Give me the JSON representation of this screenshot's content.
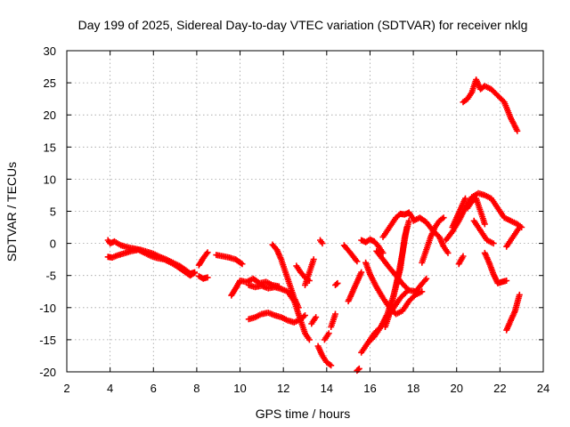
{
  "chart_data": {
    "type": "scatter",
    "title": "Day 199 of 2025, Sidereal Day-to-day VTEC variation (SDTVAR) for receiver nklg",
    "xlabel": "GPS time / hours",
    "ylabel": "SDTVAR / TECUs",
    "xlim": [
      2,
      24
    ],
    "ylim": [
      -20,
      30
    ],
    "x_ticks": [
      2,
      4,
      6,
      8,
      10,
      12,
      14,
      16,
      18,
      20,
      22,
      24
    ],
    "y_ticks": [
      -20,
      -15,
      -10,
      -5,
      0,
      5,
      10,
      15,
      20,
      25,
      30
    ],
    "grid": true,
    "marker": "+",
    "color": "#ff0000",
    "series": [
      {
        "name": "track-1",
        "x": [
          3.9,
          4.0,
          4.2,
          4.5,
          4.8,
          5.1,
          5.4,
          5.7,
          6.0,
          6.3,
          6.6,
          6.9,
          7.2,
          7.5,
          7.7,
          7.9
        ],
        "y": [
          0.5,
          0.0,
          0.3,
          -0.3,
          -0.6,
          -0.8,
          -1.0,
          -1.3,
          -1.6,
          -2.1,
          -2.5,
          -3.0,
          -3.5,
          -4.2,
          -4.7,
          -4.5
        ]
      },
      {
        "name": "track-2",
        "x": [
          3.9,
          4.1,
          4.4,
          4.7,
          5.0,
          5.3,
          5.6,
          5.9,
          6.2,
          6.5,
          6.8,
          7.1,
          7.4,
          7.7,
          7.9
        ],
        "y": [
          -2.1,
          -2.2,
          -1.8,
          -1.5,
          -1.2,
          -1.0,
          -1.5,
          -2.0,
          -2.3,
          -2.5,
          -3.0,
          -3.6,
          -4.3,
          -5.0,
          -4.6
        ]
      },
      {
        "name": "track-3",
        "x": [
          8.1,
          8.3,
          8.5
        ],
        "y": [
          -3.4,
          -2.3,
          -1.4
        ]
      },
      {
        "name": "track-4",
        "x": [
          8.1,
          8.3,
          8.5
        ],
        "y": [
          -5.1,
          -5.5,
          -5.3
        ]
      },
      {
        "name": "track-5",
        "x": [
          8.9,
          9.2,
          9.5,
          9.8,
          10.1
        ],
        "y": [
          -1.8,
          -2.0,
          -2.2,
          -2.5,
          -3.2
        ]
      },
      {
        "name": "track-6",
        "x": [
          9.6,
          9.8,
          10.0,
          10.3,
          10.6,
          10.9,
          11.2,
          11.5,
          11.8
        ],
        "y": [
          -8.1,
          -7.0,
          -5.8,
          -6.0,
          -5.5,
          -6.2,
          -6.0,
          -6.5,
          -6.7
        ]
      },
      {
        "name": "track-7",
        "x": [
          10.4,
          10.7,
          11.0,
          11.3,
          11.6,
          11.9,
          12.2,
          12.5,
          12.8,
          13.0,
          13.2
        ],
        "y": [
          -6.5,
          -6.8,
          -6.6,
          -7.0,
          -6.8,
          -7.1,
          -7.5,
          -9.0,
          -12.0,
          -14.0,
          -15.0
        ]
      },
      {
        "name": "track-8",
        "x": [
          10.4,
          10.7,
          11.0,
          11.3,
          11.6,
          11.9,
          12.2,
          12.5,
          12.8,
          13.0
        ],
        "y": [
          -11.8,
          -11.5,
          -11.0,
          -10.8,
          -11.2,
          -11.5,
          -12.0,
          -12.3,
          -11.8,
          -11.2
        ]
      },
      {
        "name": "track-9",
        "x": [
          11.5,
          11.7,
          11.9,
          12.1,
          12.3,
          12.5,
          12.7
        ],
        "y": [
          -0.2,
          -1.0,
          -2.5,
          -4.5,
          -6.5,
          -8.5,
          -10.0
        ]
      },
      {
        "name": "track-10",
        "x": [
          12.6,
          12.8,
          13.0,
          13.2
        ],
        "y": [
          -3.5,
          -4.5,
          -5.3,
          -5.8
        ]
      },
      {
        "name": "track-11",
        "x": [
          13.0,
          13.2,
          13.4
        ],
        "y": [
          -6.5,
          -4.5,
          -2.5
        ]
      },
      {
        "name": "track-12",
        "x": [
          13.3,
          13.5
        ],
        "y": [
          -12.5,
          -11.5
        ]
      },
      {
        "name": "track-13",
        "x": [
          13.6,
          13.8,
          14.0,
          14.2
        ],
        "y": [
          -16.0,
          -17.5,
          -18.5,
          -19.0
        ]
      },
      {
        "name": "track-14",
        "x": [
          13.7,
          13.8
        ],
        "y": [
          0.5,
          0.0
        ]
      },
      {
        "name": "track-15",
        "x": [
          13.9,
          14.1
        ],
        "y": [
          -15.0,
          -14.0
        ]
      },
      {
        "name": "track-16",
        "x": [
          14.2,
          14.4
        ],
        "y": [
          -13.0,
          -11.0
        ]
      },
      {
        "name": "track-17",
        "x": [
          14.4,
          14.5
        ],
        "y": [
          -6.5,
          -6.2
        ]
      },
      {
        "name": "track-18",
        "x": [
          14.8,
          15.1,
          15.4
        ],
        "y": [
          -0.3,
          -1.5,
          -2.8
        ]
      },
      {
        "name": "track-19",
        "x": [
          15.4,
          15.5
        ],
        "y": [
          -19.8,
          -19.5
        ]
      },
      {
        "name": "track-20",
        "x": [
          15.0,
          15.2,
          15.4,
          15.6
        ],
        "y": [
          -9.0,
          -7.5,
          -6.0,
          -4.5
        ]
      },
      {
        "name": "track-21",
        "x": [
          15.6,
          15.9,
          16.2,
          16.5,
          16.8,
          17.1,
          17.4,
          17.7
        ],
        "y": [
          -17.0,
          -15.5,
          -14.0,
          -13.0,
          -11.5,
          -10.0,
          -8.5,
          -7.5
        ]
      },
      {
        "name": "track-22",
        "x": [
          15.9,
          16.2,
          16.5,
          16.8,
          17.1,
          17.4,
          17.6,
          17.8
        ],
        "y": [
          -15.5,
          -14.5,
          -13.0,
          -11.0,
          -8.0,
          -4.0,
          1.0,
          3.5
        ]
      },
      {
        "name": "track-23",
        "x": [
          15.8,
          16.0,
          16.3,
          16.6,
          16.9,
          17.2,
          17.5,
          17.8,
          18.1,
          18.4
        ],
        "y": [
          -3.0,
          -4.8,
          -6.8,
          -8.5,
          -10.0,
          -11.0,
          -10.5,
          -9.0,
          -8.0,
          -7.5
        ]
      },
      {
        "name": "track-24",
        "x": [
          15.6,
          15.8,
          16.0,
          16.2,
          16.4,
          16.6
        ],
        "y": [
          0.5,
          0.2,
          0.6,
          0.3,
          -0.5,
          -1.5
        ]
      },
      {
        "name": "track-25",
        "x": [
          16.3,
          16.6,
          16.9,
          17.2,
          17.5,
          17.8,
          18.1,
          18.4,
          18.6
        ],
        "y": [
          -1.2,
          -2.5,
          -3.8,
          -5.0,
          -6.3,
          -7.3,
          -7.5,
          -6.3,
          -5.5
        ]
      },
      {
        "name": "track-26",
        "x": [
          16.6,
          16.8,
          17.0,
          17.2,
          17.4,
          17.6,
          17.8,
          18.0
        ],
        "y": [
          1.0,
          2.0,
          3.0,
          4.0,
          4.6,
          4.5,
          4.8,
          3.8
        ]
      },
      {
        "name": "track-27",
        "x": [
          16.7,
          16.9,
          17.1,
          17.3,
          17.5,
          17.7
        ],
        "y": [
          -13.0,
          -11.0,
          -8.0,
          -5.0,
          -1.5,
          2.5
        ]
      },
      {
        "name": "track-28",
        "x": [
          18.0,
          18.3,
          18.6,
          18.9,
          19.2,
          19.4,
          19.6
        ],
        "y": [
          3.5,
          4.0,
          3.3,
          2.0,
          1.0,
          -0.5,
          -1.5
        ]
      },
      {
        "name": "track-29",
        "x": [
          18.4,
          18.6,
          18.8,
          19.0,
          19.2,
          19.4
        ],
        "y": [
          -3.0,
          -1.0,
          1.0,
          2.5,
          3.5,
          4.0
        ]
      },
      {
        "name": "track-30",
        "x": [
          19.5,
          19.8,
          20.1,
          20.4,
          20.7,
          21.0,
          21.3,
          21.6,
          21.9,
          22.2,
          22.5,
          22.8,
          23.0
        ],
        "y": [
          0.5,
          1.8,
          3.5,
          5.5,
          7.2,
          7.8,
          7.5,
          7.0,
          5.5,
          4.0,
          3.5,
          3.0,
          2.5
        ]
      },
      {
        "name": "track-31",
        "x": [
          19.8,
          20.0,
          20.2,
          20.4
        ],
        "y": [
          2.5,
          4.0,
          5.5,
          7.0
        ]
      },
      {
        "name": "track-32",
        "x": [
          20.5,
          20.7,
          20.9,
          21.1,
          21.3
        ],
        "y": [
          5.5,
          6.5,
          7.0,
          5.0,
          3.0
        ]
      },
      {
        "name": "track-33",
        "x": [
          20.1,
          20.3
        ],
        "y": [
          -3.2,
          -2.0
        ]
      },
      {
        "name": "track-34",
        "x": [
          20.8,
          21.1,
          21.4,
          21.7
        ],
        "y": [
          3.5,
          2.0,
          0.5,
          0.0
        ]
      },
      {
        "name": "track-35",
        "x": [
          21.3,
          21.5,
          21.7,
          21.9,
          22.1,
          22.3
        ],
        "y": [
          -1.5,
          -3.0,
          -4.8,
          -6.2,
          -6.0,
          -5.8
        ]
      },
      {
        "name": "track-36",
        "x": [
          22.3,
          22.5,
          22.7,
          22.9
        ],
        "y": [
          -0.5,
          0.5,
          1.5,
          2.5
        ]
      },
      {
        "name": "track-37",
        "x": [
          22.3,
          22.5,
          22.7,
          22.9
        ],
        "y": [
          -13.5,
          -12.0,
          -10.5,
          -8.0
        ]
      },
      {
        "name": "track-38",
        "x": [
          20.3,
          20.5,
          20.7,
          20.9,
          21.1,
          21.3,
          21.6,
          21.9,
          22.2,
          22.5,
          22.8
        ],
        "y": [
          22.0,
          22.5,
          23.5,
          25.5,
          24.0,
          24.5,
          24.0,
          23.0,
          22.0,
          19.5,
          17.5
        ]
      }
    ]
  }
}
